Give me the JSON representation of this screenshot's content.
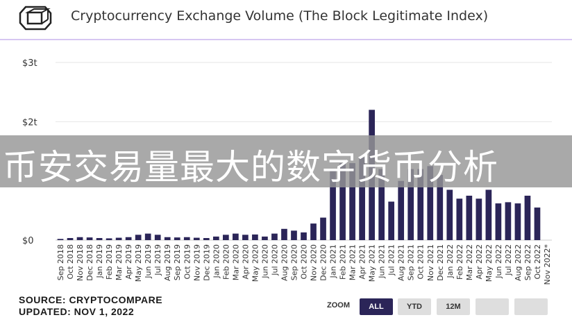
{
  "header": {
    "title": "Cryptocurrency Exchange Volume (The Block Legitimate Index)"
  },
  "overlay": {
    "text": "币安交易量最大的数字货币分析"
  },
  "footer": {
    "source": "SOURCE: CRYPTOCOMPARE",
    "updated": "UPDATED: NOV 1, 2022"
  },
  "controls": {
    "zoom_label": "ZOOM",
    "buttons": [
      {
        "label": "ALL",
        "active": true
      },
      {
        "label": "YTD",
        "active": false
      },
      {
        "label": "12M",
        "active": false
      },
      {
        "label": "",
        "active": false
      },
      {
        "label": "",
        "active": false
      }
    ]
  },
  "colors": {
    "bar": "#2b2558",
    "grid": "#e6e6e6",
    "divider": "#d6c6f2"
  },
  "chart_data": {
    "type": "bar",
    "title": "Cryptocurrency Exchange Volume (The Block Legitimate Index)",
    "ylim": [
      0,
      3000000000000
    ],
    "yticks": [
      {
        "value": 0,
        "label": "$0"
      },
      {
        "value": 2000000000000,
        "label": "$2t"
      },
      {
        "value": 3000000000000,
        "label": "$3t"
      }
    ],
    "categories": [
      "Sep 2018",
      "Oct 2018",
      "Nov 2018",
      "Dec 2018",
      "Jan 2019",
      "Feb 2019",
      "Mar 2019",
      "Apr 2019",
      "May 2019",
      "Jun 2019",
      "Jul 2019",
      "Aug 2019",
      "Sep 2019",
      "Oct 2019",
      "Nov 2019",
      "Dec 2019",
      "Jan 2020",
      "Feb 2020",
      "Mar 2020",
      "Apr 2020",
      "May 2020",
      "Jun 2020",
      "Jul 2020",
      "Aug 2020",
      "Sep 2020",
      "Oct 2020",
      "Nov 2020",
      "Dec 2020",
      "Jan 2021",
      "Feb 2021",
      "Mar 2021",
      "Apr 2021",
      "May 2021",
      "Jun 2021",
      "Jul 2021",
      "Aug 2021",
      "Sep 2021",
      "Oct 2021",
      "Nov 2021",
      "Dec 2021",
      "Jan 2022",
      "Feb 2022",
      "Mar 2022",
      "Apr 2022",
      "May 2022",
      "Jun 2022",
      "Jul 2022",
      "Aug 2022",
      "Sep 2022",
      "Oct 2022",
      "Nov 2022*"
    ],
    "values": [
      20000000000,
      35000000000,
      50000000000,
      45000000000,
      35000000000,
      30000000000,
      40000000000,
      50000000000,
      90000000000,
      110000000000,
      90000000000,
      50000000000,
      45000000000,
      50000000000,
      40000000000,
      35000000000,
      60000000000,
      90000000000,
      110000000000,
      90000000000,
      95000000000,
      60000000000,
      110000000000,
      190000000000,
      160000000000,
      130000000000,
      280000000000,
      380000000000,
      1200000000000,
      1300000000000,
      1300000000000,
      1400000000000,
      2200000000000,
      1200000000000,
      650000000000,
      1000000000000,
      1200000000000,
      1200000000000,
      1250000000000,
      1100000000000,
      850000000000,
      700000000000,
      750000000000,
      700000000000,
      850000000000,
      620000000000,
      640000000000,
      620000000000,
      750000000000,
      550000000000,
      0
    ]
  }
}
